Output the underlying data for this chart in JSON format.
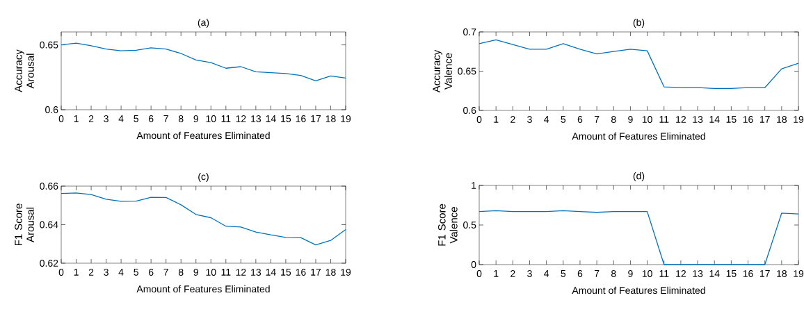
{
  "chart_data": [
    {
      "type": "line",
      "title": "(a)",
      "xlabel": "Amount of Features Eliminated",
      "ylabel": "Accuracy Arousal",
      "x": [
        0,
        1,
        2,
        3,
        4,
        5,
        6,
        7,
        8,
        9,
        10,
        11,
        12,
        13,
        14,
        15,
        16,
        17,
        18,
        19
      ],
      "xlim": [
        0,
        19
      ],
      "xticks": [
        0,
        1,
        2,
        3,
        4,
        5,
        6,
        7,
        8,
        9,
        10,
        11,
        12,
        13,
        14,
        15,
        16,
        17,
        18,
        19
      ],
      "ylim": [
        0.6,
        0.66
      ],
      "yticks": [
        0.6,
        0.65
      ],
      "series": [
        {
          "color": "#0072bd",
          "values": [
            0.65,
            0.6514,
            0.6493,
            0.6468,
            0.6455,
            0.6459,
            0.6477,
            0.6468,
            0.6434,
            0.6384,
            0.6363,
            0.632,
            0.6332,
            0.6293,
            0.6286,
            0.6279,
            0.6264,
            0.6223,
            0.626,
            0.6244
          ]
        }
      ]
    },
    {
      "type": "line",
      "title": "(b)",
      "xlabel": "Amount of Features Eliminated",
      "ylabel": "Accuracy Valence",
      "x": [
        0,
        1,
        2,
        3,
        4,
        5,
        6,
        7,
        8,
        9,
        10,
        11,
        12,
        13,
        14,
        15,
        16,
        17,
        18,
        19
      ],
      "xlim": [
        0,
        19
      ],
      "xticks": [
        0,
        1,
        2,
        3,
        4,
        5,
        6,
        7,
        8,
        9,
        10,
        11,
        12,
        13,
        14,
        15,
        16,
        17,
        18,
        19
      ],
      "ylim": [
        0.6,
        0.7
      ],
      "yticks": [
        0.6,
        0.65,
        0.7
      ],
      "series": [
        {
          "color": "#0072bd",
          "values": [
            0.685,
            0.69,
            0.684,
            0.678,
            0.678,
            0.685,
            0.678,
            0.672,
            0.675,
            0.678,
            0.676,
            0.63,
            0.629,
            0.629,
            0.628,
            0.628,
            0.629,
            0.629,
            0.653,
            0.66
          ]
        }
      ]
    },
    {
      "type": "line",
      "title": "(c)",
      "xlabel": "Amount of Features Eliminated",
      "ylabel": "F1 Score Arousal",
      "x": [
        0,
        1,
        2,
        3,
        4,
        5,
        6,
        7,
        8,
        9,
        10,
        11,
        12,
        13,
        14,
        15,
        16,
        17,
        18,
        19
      ],
      "xlim": [
        0,
        19
      ],
      "xticks": [
        0,
        1,
        2,
        3,
        4,
        5,
        6,
        7,
        8,
        9,
        10,
        11,
        12,
        13,
        14,
        15,
        16,
        17,
        18,
        19
      ],
      "ylim": [
        0.62,
        0.66
      ],
      "yticks": [
        0.62,
        0.64,
        0.66
      ],
      "series": [
        {
          "color": "#0072bd",
          "values": [
            0.6562,
            0.6564,
            0.6556,
            0.6532,
            0.6521,
            0.6522,
            0.6542,
            0.6541,
            0.6503,
            0.6453,
            0.6436,
            0.6392,
            0.6388,
            0.6362,
            0.6347,
            0.6334,
            0.6333,
            0.6295,
            0.6318,
            0.6375
          ]
        }
      ]
    },
    {
      "type": "line",
      "title": "(d)",
      "xlabel": "Amount of Features Eliminated",
      "ylabel": "F1 Score Valence",
      "x": [
        0,
        1,
        2,
        3,
        4,
        5,
        6,
        7,
        8,
        9,
        10,
        11,
        12,
        13,
        14,
        15,
        16,
        17,
        18,
        19
      ],
      "xlim": [
        0,
        19
      ],
      "xticks": [
        0,
        1,
        2,
        3,
        4,
        5,
        6,
        7,
        8,
        9,
        10,
        11,
        12,
        13,
        14,
        15,
        16,
        17,
        18,
        19
      ],
      "ylim": [
        0,
        1
      ],
      "yticks": [
        0,
        0.5,
        1
      ],
      "series": [
        {
          "color": "#0072bd",
          "values": [
            0.67,
            0.68,
            0.67,
            0.67,
            0.67,
            0.68,
            0.67,
            0.66,
            0.67,
            0.67,
            0.67,
            0,
            0,
            0,
            0,
            0,
            0,
            0,
            0.65,
            0.64
          ]
        }
      ]
    }
  ]
}
